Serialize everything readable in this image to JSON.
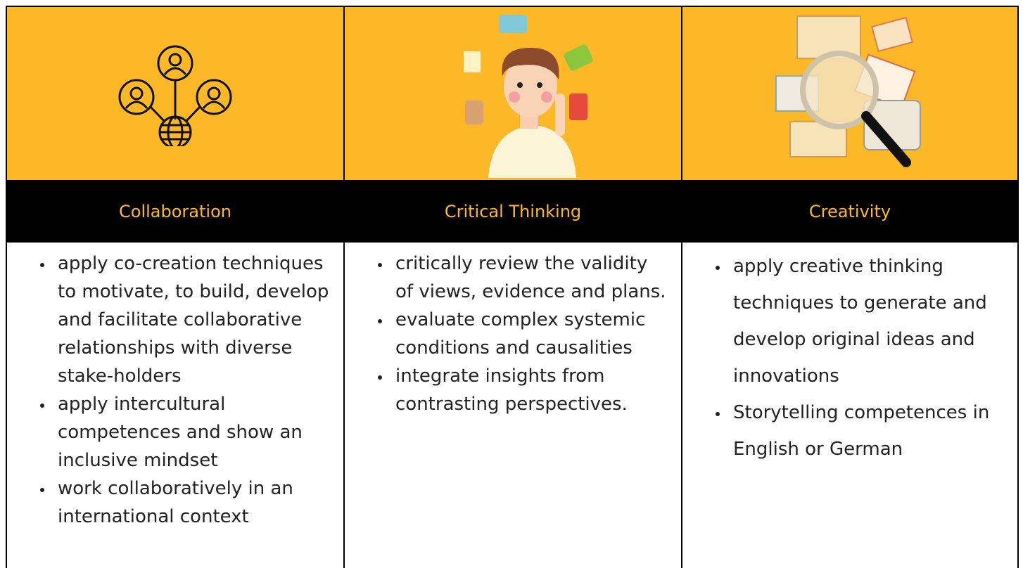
{
  "columns": [
    {
      "title": "Collaboration",
      "items": [
        "apply co-creation techniques to motivate, to build, develop and facilitate collaborative relationships with diverse stake-holders",
        "apply intercultural competences and show an inclusive mindset",
        "work collaboratively in an international context"
      ]
    },
    {
      "title": "Critical Thinking",
      "items": [
        "critically review the validity of views, evidence and plans.",
        "evaluate complex systemic conditions and causalities",
        "integrate insights from contrasting perspectives."
      ]
    },
    {
      "title": "Creativity",
      "items": [
        "apply creative thinking techniques to generate and develop original ideas and innovations",
        "Storytelling competences in English or German"
      ]
    }
  ]
}
